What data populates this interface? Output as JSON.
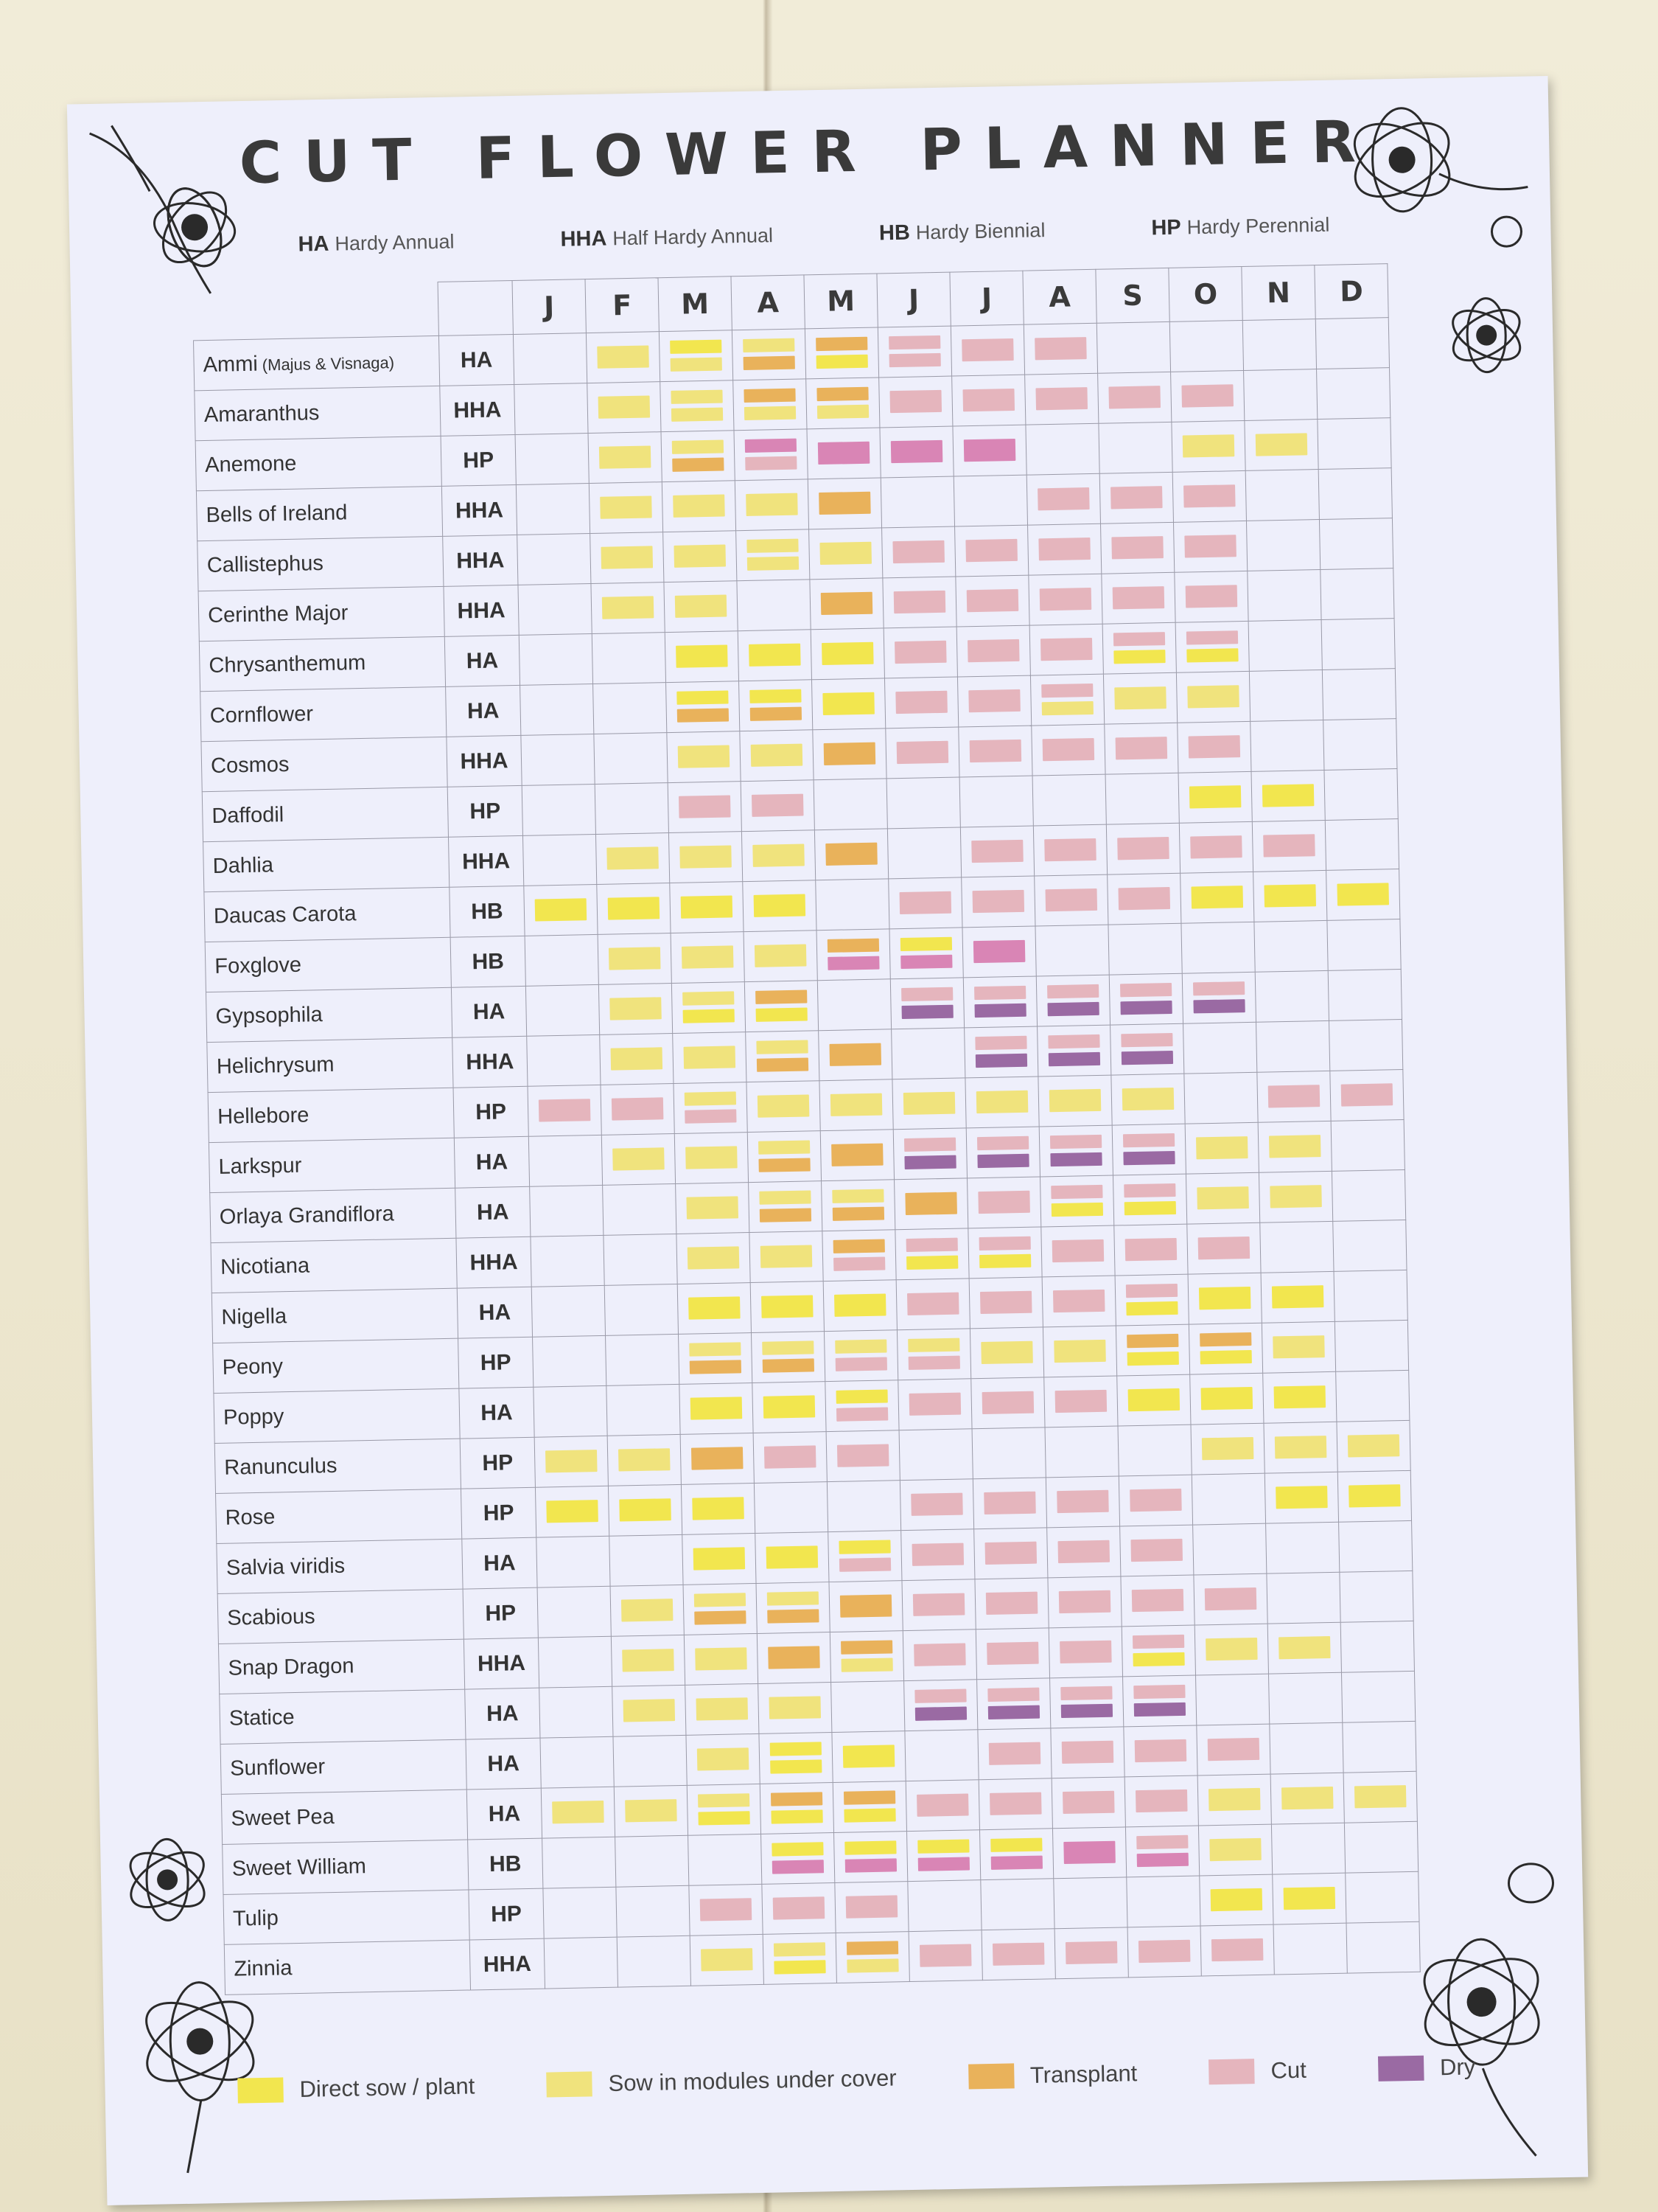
{
  "title": "CUT FLOWER PLANNER",
  "key": [
    {
      "code": "HA",
      "label": "Hardy Annual"
    },
    {
      "code": "HHA",
      "label": "Half Hardy Annual"
    },
    {
      "code": "HB",
      "label": "Hardy Biennial"
    },
    {
      "code": "HP",
      "label": "Hardy Perennial"
    }
  ],
  "months": [
    "J",
    "F",
    "M",
    "A",
    "M",
    "J",
    "J",
    "A",
    "S",
    "O",
    "N",
    "D"
  ],
  "colors": {
    "D": "#f2e64f",
    "S": "#f0e37d",
    "T": "#e9b25b",
    "C": "#e5b5bd",
    "Y": "#9a6aa3",
    "P": "#d985b5"
  },
  "legend": [
    {
      "key": "D",
      "label": "Direct sow / plant"
    },
    {
      "key": "S",
      "label": "Sow in modules under cover"
    },
    {
      "key": "T",
      "label": "Transplant"
    },
    {
      "key": "C",
      "label": "Cut"
    },
    {
      "key": "Y",
      "label": "Dry"
    }
  ],
  "plants": [
    {
      "name": "Ammi",
      "note": "(Majus & Visnaga)",
      "type": "HA",
      "cells": [
        "",
        "S",
        "D/S",
        "S/T",
        "T/D",
        "C/C",
        "C",
        "C",
        "",
        "",
        "",
        ""
      ]
    },
    {
      "name": "Amaranthus",
      "type": "HHA",
      "cells": [
        "",
        "S",
        "S/S",
        "T/S",
        "T/S",
        "C",
        "C",
        "C",
        "C",
        "C",
        "",
        ""
      ]
    },
    {
      "name": "Anemone",
      "type": "HP",
      "cells": [
        "",
        "S",
        "S/T",
        "P/C",
        "P",
        "P",
        "P",
        "",
        "",
        "S",
        "S",
        ""
      ]
    },
    {
      "name": "Bells of Ireland",
      "type": "HHA",
      "cells": [
        "",
        "S",
        "S",
        "S",
        "T",
        "",
        "",
        "C",
        "C",
        "C",
        "",
        ""
      ]
    },
    {
      "name": "Callistephus",
      "type": "HHA",
      "cells": [
        "",
        "S",
        "S",
        "S/S",
        "S",
        "C",
        "C",
        "C",
        "C",
        "C",
        "",
        ""
      ]
    },
    {
      "name": "Cerinthe Major",
      "type": "HHA",
      "cells": [
        "",
        "S",
        "S",
        "",
        "T",
        "C",
        "C",
        "C",
        "C",
        "C",
        "",
        ""
      ]
    },
    {
      "name": "Chrysanthemum",
      "type": "HA",
      "cells": [
        "",
        "",
        "D",
        "D",
        "D",
        "C",
        "C",
        "C",
        "C/D",
        "C/D",
        "",
        ""
      ]
    },
    {
      "name": "Cornflower",
      "type": "HA",
      "cells": [
        "",
        "",
        "D/T",
        "D/T",
        "D",
        "C",
        "C",
        "C/S",
        "S",
        "S",
        "",
        ""
      ]
    },
    {
      "name": "Cosmos",
      "type": "HHA",
      "cells": [
        "",
        "",
        "S",
        "S",
        "T",
        "C",
        "C",
        "C",
        "C",
        "C",
        "",
        ""
      ]
    },
    {
      "name": "Daffodil",
      "type": "HP",
      "cells": [
        "",
        "",
        "C",
        "C",
        "",
        "",
        "",
        "",
        "",
        "D",
        "D",
        ""
      ]
    },
    {
      "name": "Dahlia",
      "type": "HHA",
      "cells": [
        "",
        "S",
        "S",
        "S",
        "T",
        "",
        "C",
        "C",
        "C",
        "C",
        "C",
        ""
      ]
    },
    {
      "name": "Daucas Carota",
      "type": "HB",
      "cells": [
        "D",
        "D",
        "D",
        "D",
        "",
        "C",
        "C",
        "C",
        "C",
        "D",
        "D",
        "D"
      ]
    },
    {
      "name": "Foxglove",
      "type": "HB",
      "cells": [
        "",
        "S",
        "S",
        "S",
        "T/P",
        "D/P",
        "P",
        "",
        "",
        "",
        "",
        ""
      ]
    },
    {
      "name": "Gypsophila",
      "type": "HA",
      "cells": [
        "",
        "S",
        "S/D",
        "T/D",
        "",
        "C/Y",
        "C/Y",
        "C/Y",
        "C/Y",
        "C/Y",
        "",
        ""
      ]
    },
    {
      "name": "Helichrysum",
      "type": "HHA",
      "cells": [
        "",
        "S",
        "S",
        "S/T",
        "T",
        "",
        "C/Y",
        "C/Y",
        "C/Y",
        "",
        "",
        ""
      ]
    },
    {
      "name": "Hellebore",
      "type": "HP",
      "cells": [
        "C",
        "C",
        "S/C",
        "S",
        "S",
        "S",
        "S",
        "S",
        "S",
        "",
        "C",
        "C"
      ]
    },
    {
      "name": "Larkspur",
      "type": "HA",
      "cells": [
        "",
        "S",
        "S",
        "S/T",
        "T",
        "C/Y",
        "C/Y",
        "C/Y",
        "C/Y",
        "S",
        "S",
        ""
      ]
    },
    {
      "name": "Orlaya Grandiflora",
      "type": "HA",
      "cells": [
        "",
        "",
        "S",
        "S/T",
        "S/T",
        "T",
        "C",
        "C/D",
        "C/D",
        "S",
        "S",
        ""
      ]
    },
    {
      "name": "Nicotiana",
      "type": "HHA",
      "cells": [
        "",
        "",
        "S",
        "S",
        "T/C",
        "C/D",
        "C/D",
        "C",
        "C",
        "C",
        "",
        ""
      ]
    },
    {
      "name": "Nigella",
      "type": "HA",
      "cells": [
        "",
        "",
        "D",
        "D",
        "D",
        "C",
        "C",
        "C",
        "C/D",
        "D",
        "D",
        ""
      ]
    },
    {
      "name": "Peony",
      "type": "HP",
      "cells": [
        "",
        "",
        "S/T",
        "S/T",
        "S/C",
        "S/C",
        "S",
        "S",
        "T/D",
        "T/D",
        "S",
        ""
      ]
    },
    {
      "name": "Poppy",
      "type": "HA",
      "cells": [
        "",
        "",
        "D",
        "D",
        "D/C",
        "C",
        "C",
        "C",
        "D",
        "D",
        "D",
        ""
      ]
    },
    {
      "name": "Ranunculus",
      "type": "HP",
      "cells": [
        "S",
        "S",
        "T",
        "C",
        "C",
        "",
        "",
        "",
        "",
        "S",
        "S",
        "S"
      ]
    },
    {
      "name": "Rose",
      "type": "HP",
      "cells": [
        "D",
        "D",
        "D",
        "",
        "",
        "C",
        "C",
        "C",
        "C",
        "",
        "D",
        "D"
      ]
    },
    {
      "name": "Salvia viridis",
      "type": "HA",
      "cells": [
        "",
        "",
        "D",
        "D",
        "D/C",
        "C",
        "C",
        "C",
        "C",
        "",
        "",
        ""
      ]
    },
    {
      "name": "Scabious",
      "type": "HP",
      "cells": [
        "",
        "S",
        "S/T",
        "S/T",
        "T",
        "C",
        "C",
        "C",
        "C",
        "C",
        "",
        ""
      ]
    },
    {
      "name": "Snap Dragon",
      "type": "HHA",
      "cells": [
        "",
        "S",
        "S",
        "T",
        "T/S",
        "C",
        "C",
        "C",
        "C/D",
        "S",
        "S",
        ""
      ]
    },
    {
      "name": "Statice",
      "type": "HA",
      "cells": [
        "",
        "S",
        "S",
        "S",
        "",
        "C/Y",
        "C/Y",
        "C/Y",
        "C/Y",
        "",
        "",
        ""
      ]
    },
    {
      "name": "Sunflower",
      "type": "HA",
      "cells": [
        "",
        "",
        "S",
        "D/D",
        "D",
        "",
        "C",
        "C",
        "C",
        "C",
        "",
        ""
      ]
    },
    {
      "name": "Sweet Pea",
      "type": "HA",
      "cells": [
        "S",
        "S",
        "S/D",
        "T/D",
        "T/D",
        "C",
        "C",
        "C",
        "C",
        "S",
        "S",
        "S"
      ]
    },
    {
      "name": "Sweet William",
      "type": "HB",
      "cells": [
        "",
        "",
        "",
        "D/P",
        "D/P",
        "D/P",
        "D/P",
        "P",
        "C/P",
        "S",
        "",
        ""
      ]
    },
    {
      "name": "Tulip",
      "type": "HP",
      "cells": [
        "",
        "",
        "C",
        "C",
        "C",
        "",
        "",
        "",
        "",
        "D",
        "D",
        ""
      ]
    },
    {
      "name": "Zinnia",
      "type": "HHA",
      "cells": [
        "",
        "",
        "S",
        "S/D",
        "T/S",
        "C",
        "C",
        "C",
        "C",
        "C",
        "",
        ""
      ]
    }
  ]
}
